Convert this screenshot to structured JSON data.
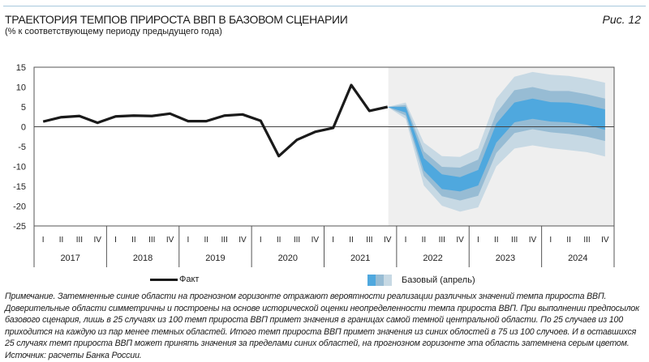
{
  "header": {
    "title": "ТРАЕКТОРИЯ ТЕМПОВ ПРИРОСТА ВВП В БАЗОВОМ СЦЕНАРИИ",
    "subtitle": "(% к соответствующему периоду предыдущего года)",
    "figure_label": "Рис. 12"
  },
  "chart_data": {
    "type": "line",
    "title": "",
    "ylim": [
      -25,
      15
    ],
    "yticks": [
      "15",
      "10",
      "5",
      "0",
      "-5",
      "-10",
      "-15",
      "-20",
      "-25"
    ],
    "ytick_values": [
      15,
      10,
      5,
      0,
      -5,
      -10,
      -15,
      -20,
      -25
    ],
    "quarters": [
      "I",
      "II",
      "III",
      "IV"
    ],
    "years": [
      "2017",
      "2018",
      "2019",
      "2020",
      "2021",
      "2022",
      "2023",
      "2024"
    ],
    "forecast_shading_color": "#efefef",
    "series": [
      {
        "name": "Факт",
        "color": "#1a1a1a",
        "start": "2017 I",
        "values": [
          1.3,
          2.4,
          2.7,
          1.0,
          2.6,
          2.8,
          2.7,
          3.3,
          1.4,
          1.4,
          2.8,
          3.1,
          1.5,
          -7.4,
          -3.3,
          -1.3,
          -0.3,
          10.5,
          4.0,
          5.0
        ]
      },
      {
        "name": "Базовый (апрель)",
        "type": "fan",
        "start": "2021 IV",
        "colors": {
          "dark": "#4fa8de",
          "mid": "#97bcd4",
          "light": "#c7d9e4"
        },
        "outer_upper": [
          5,
          6.1,
          -4,
          -7.4,
          -7.6,
          -5.4,
          7.1,
          12.6,
          13.8,
          13.1,
          12.8,
          12.1,
          11.1
        ],
        "mid_upper": [
          5,
          5.5,
          -6.2,
          -10.1,
          -10.3,
          -8.3,
          3.4,
          9.2,
          10,
          9,
          9,
          8.2,
          7.1
        ],
        "dark_upper": [
          5,
          5,
          -7.9,
          -12,
          -12.7,
          -10.9,
          0.8,
          6.1,
          7.1,
          6.2,
          6.1,
          5.4,
          4.4
        ],
        "dark_lower": [
          5,
          3.6,
          -11,
          -15.7,
          -16.3,
          -14.8,
          -4,
          1.1,
          2,
          1.3,
          1.1,
          0.5,
          -0.8
        ],
        "mid_lower": [
          5,
          2.8,
          -12.4,
          -17.5,
          -18.6,
          -17.4,
          -6.6,
          -1.6,
          -0.6,
          -1.4,
          -1.8,
          -2.5,
          -3.6
        ],
        "outer_lower": [
          5,
          2.0,
          -14.8,
          -19.9,
          -21.4,
          -20.3,
          -10,
          -5.5,
          -4.7,
          -5.4,
          -5.9,
          -6.4,
          -7.5
        ]
      }
    ],
    "legend": {
      "placement": "bottom",
      "fact": "Факт",
      "base": "Базовый (апрель)"
    }
  },
  "note": {
    "text": "Примечание. Затемненные синие области на прогнозном горизонте отражают вероятности реализации различных значений темпа прироста ВВП. Доверительные области симметричны и построены на основе исторической оценки неопределенности темпа прироста ВВП. При выполнении предпосылок базового сценария, лишь в 25 случаях из 100 темп прироста ВВП примет значения в границах самой темной центральной области. По 25 случаев из 100 приходится на каждую из пар менее темных областей. Итого темп прироста ВВП примет значения из синих облостей в 75 из 100 случоев. И в оставшихся 25 случаях темп прироста ВВП может принять значения за пределами синих областей, на прогнозном горизонте эта область затемнена серым цветом.",
    "source": "Источник: расчеты Банка России."
  }
}
